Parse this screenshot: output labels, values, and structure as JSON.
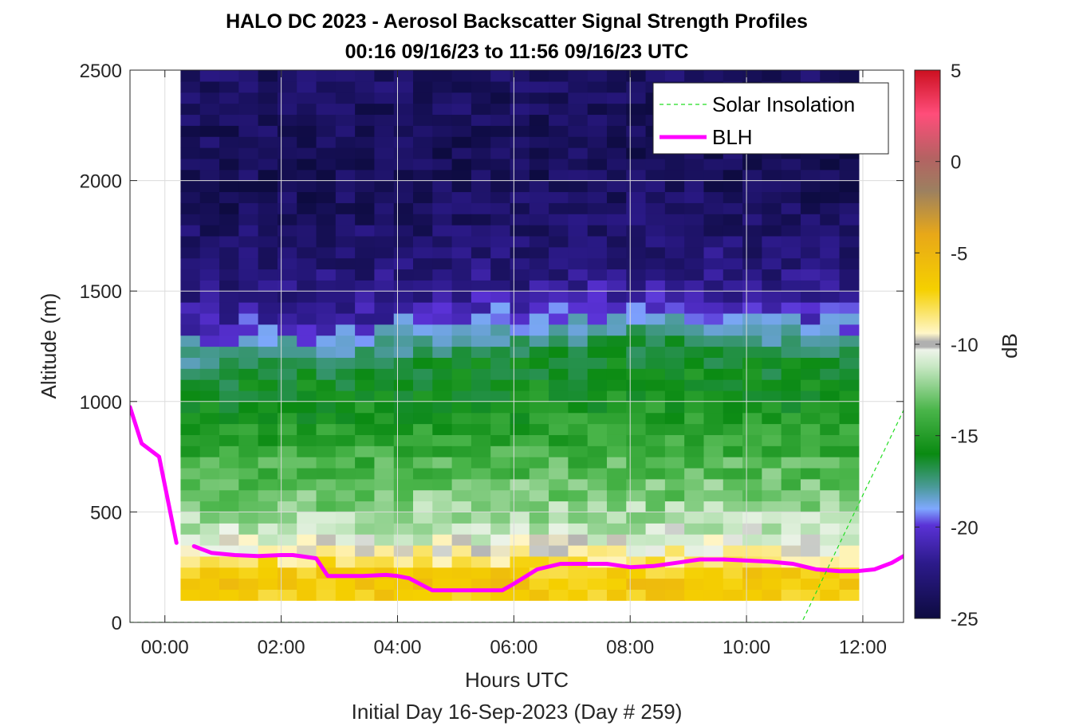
{
  "chart_data": {
    "type": "heatmap",
    "title": "HALO DC 2023 - Aerosol Backscatter Signal Strength Profiles",
    "subtitle": "00:16 09/16/23 to 11:56 09/16/23  UTC",
    "xlabel": "Hours UTC",
    "xlabel2": "Initial Day 16-Sep-2023 (Day # 259)",
    "ylabel": "Altitude (m)",
    "xlim": [
      -0.6,
      12.7
    ],
    "ylim": [
      0,
      2500
    ],
    "x_ticks": [
      0,
      2,
      4,
      6,
      8,
      10,
      12
    ],
    "x_tick_labels": [
      "00:00",
      "02:00",
      "04:00",
      "06:00",
      "08:00",
      "10:00",
      "12:00"
    ],
    "y_ticks": [
      0,
      500,
      1000,
      1500,
      2000,
      2500
    ],
    "y_tick_labels": [
      "0",
      "500",
      "1000",
      "1500",
      "2000",
      "2500"
    ],
    "grid": true,
    "colorbar": {
      "label": "dB",
      "range": [
        -25,
        5
      ],
      "ticks": [
        5,
        0,
        -5,
        -10,
        -15,
        -20,
        -25
      ],
      "tick_labels": [
        "5",
        "0",
        "-5",
        "-10",
        "-15",
        "-20",
        "-25"
      ]
    },
    "legend": {
      "placement": "top-right",
      "entries": [
        {
          "name": "Solar Insolation",
          "color": "#22dd22",
          "style": "dashed"
        },
        {
          "name": "BLH",
          "color": "#ff00ff",
          "style": "solid"
        }
      ]
    },
    "heatmap": {
      "x_start": 0.27,
      "x_end": 11.93,
      "n_cols": 35,
      "y_start": 100,
      "y_end": 2500,
      "n_rows": 48,
      "signal_profile": [
        {
          "alt": 100,
          "db": -7
        },
        {
          "alt": 200,
          "db": -6
        },
        {
          "alt": 300,
          "db": -9
        },
        {
          "alt": 400,
          "db": -11
        },
        {
          "alt": 550,
          "db": -12.5
        },
        {
          "alt": 750,
          "db": -14
        },
        {
          "alt": 950,
          "db": -15.5
        },
        {
          "alt": 1150,
          "db": -16.5
        },
        {
          "alt": 1250,
          "db": -18.5
        },
        {
          "alt": 1350,
          "db": -20.5
        },
        {
          "alt": 1500,
          "db": -22.5
        },
        {
          "alt": 2000,
          "db": -24
        },
        {
          "alt": 2500,
          "db": -23.5
        }
      ],
      "top_of_aerosol_layer_m": [
        1250,
        1270,
        1300,
        1330,
        1360,
        1400,
        1350,
        1320
      ]
    },
    "series": [
      {
        "name": "BLH",
        "color": "#ff00ff",
        "segments": [
          {
            "x": [
              -0.6,
              -0.4,
              -0.1,
              0.2
            ],
            "y": [
              975,
              810,
              750,
              360
            ]
          },
          {
            "x": [
              0.5,
              0.8,
              1.2,
              1.6,
              2.0,
              2.2,
              2.6,
              2.8,
              3.0,
              3.4,
              3.8,
              4.0,
              4.2,
              4.6,
              5.0,
              5.4,
              5.8,
              6.0,
              6.4,
              6.8,
              7.2,
              7.6,
              8.0,
              8.4,
              8.8,
              9.2,
              9.6,
              10.0,
              10.4,
              10.8,
              11.2,
              11.6,
              11.9,
              12.2,
              12.5,
              12.7
            ],
            "y": [
              345,
              315,
              305,
              300,
              305,
              305,
              290,
              210,
              210,
              210,
              215,
              210,
              200,
              145,
              145,
              145,
              145,
              175,
              240,
              265,
              265,
              265,
              250,
              255,
              270,
              285,
              285,
              280,
              275,
              265,
              240,
              232,
              232,
              240,
              270,
              300
            ]
          }
        ]
      },
      {
        "name": "Solar Insolation",
        "color": "#22dd22",
        "x": [
          -0.6,
          10.95,
          12.7
        ],
        "y": [
          0,
          0,
          960
        ]
      }
    ]
  }
}
